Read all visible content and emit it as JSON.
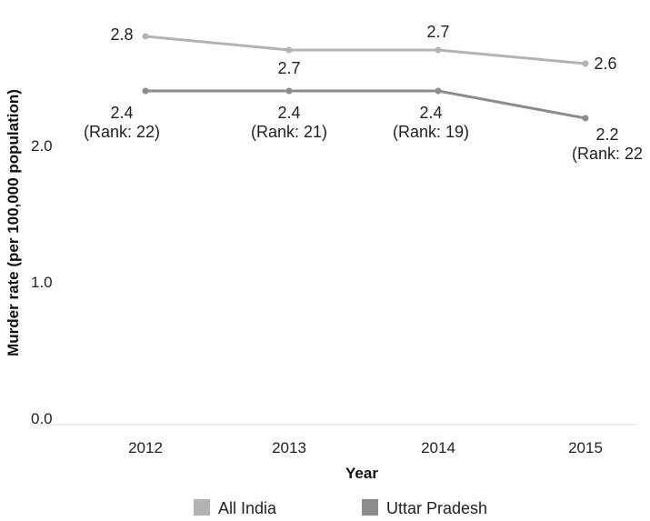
{
  "chart_data": {
    "type": "line",
    "title": "",
    "xlabel": "Year",
    "ylabel": "Murder rate (per 100,000 population)",
    "categories": [
      "2012",
      "2013",
      "2014",
      "2015"
    ],
    "ylim": [
      0,
      3
    ],
    "yticks": [
      {
        "value": 0,
        "label": "0.0"
      },
      {
        "value": 1,
        "label": "1.0"
      },
      {
        "value": 2,
        "label": "2.0"
      }
    ],
    "grid": false,
    "legend": "bottom",
    "series": [
      {
        "name": "All India",
        "color": "#b3b3b3",
        "values": [
          2.8,
          2.7,
          2.7,
          2.6
        ],
        "labels": [
          [
            "2.8"
          ],
          [
            "2.7"
          ],
          [
            "2.7"
          ],
          [
            "2.6"
          ]
        ]
      },
      {
        "name": "Uttar Pradesh",
        "color": "#8c8c8c",
        "values": [
          2.4,
          2.4,
          2.4,
          2.2
        ],
        "labels": [
          [
            "2.4",
            "(Rank: 22)"
          ],
          [
            "2.4",
            "(Rank: 21)"
          ],
          [
            "2.4",
            "(Rank: 19)"
          ],
          [
            "2.2",
            "(Rank: 22"
          ]
        ]
      }
    ]
  }
}
